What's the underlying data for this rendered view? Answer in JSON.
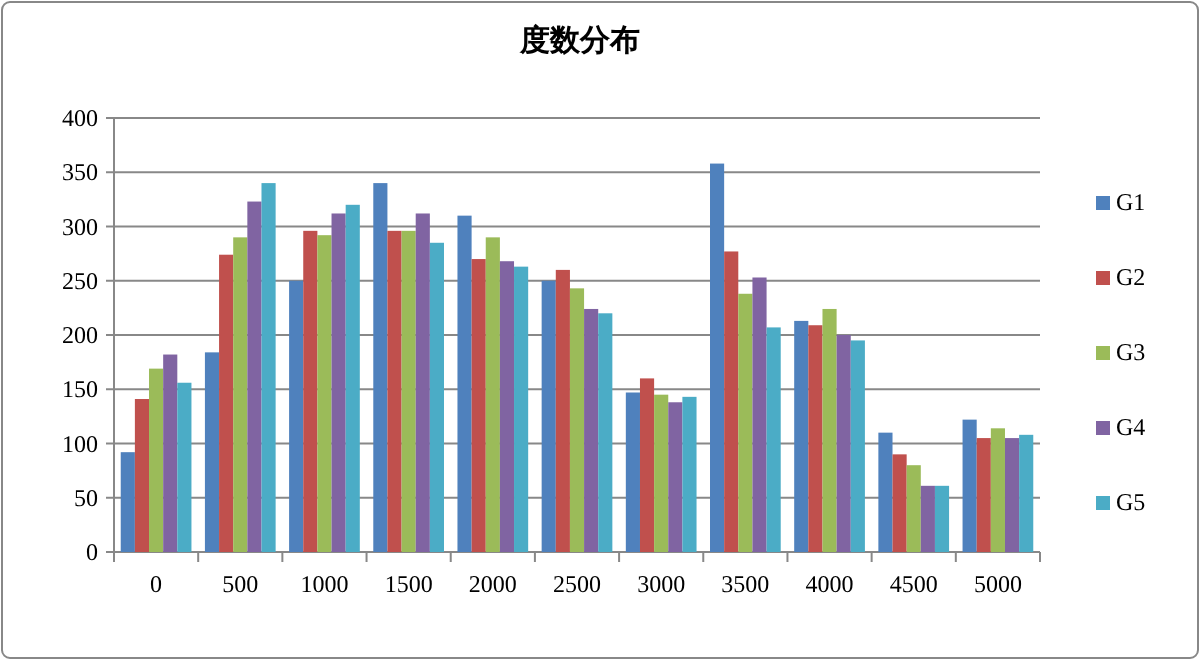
{
  "chart_data": {
    "type": "bar",
    "title": "度数分布",
    "categories": [
      "0",
      "500",
      "1000",
      "1500",
      "2000",
      "2500",
      "3000",
      "3500",
      "4000",
      "4500",
      "5000"
    ],
    "series": [
      {
        "name": "G1",
        "color": "#4f81bd",
        "values": [
          92,
          184,
          250,
          340,
          310,
          250,
          147,
          358,
          213,
          110,
          122
        ]
      },
      {
        "name": "G2",
        "color": "#c0504d",
        "values": [
          141,
          274,
          296,
          296,
          270,
          260,
          160,
          277,
          209,
          90,
          105
        ]
      },
      {
        "name": "G3",
        "color": "#9bbb59",
        "values": [
          169,
          290,
          292,
          296,
          290,
          243,
          145,
          238,
          224,
          80,
          114
        ]
      },
      {
        "name": "G4",
        "color": "#8064a2",
        "values": [
          182,
          323,
          312,
          312,
          268,
          224,
          138,
          253,
          200,
          61,
          105
        ]
      },
      {
        "name": "G5",
        "color": "#4bacc6",
        "values": [
          156,
          340,
          320,
          285,
          263,
          220,
          143,
          207,
          195,
          61,
          108
        ]
      }
    ],
    "ylim": [
      0,
      400
    ],
    "yticks": [
      0,
      50,
      100,
      150,
      200,
      250,
      300,
      350,
      400
    ],
    "grid": "y",
    "legend": "right"
  }
}
